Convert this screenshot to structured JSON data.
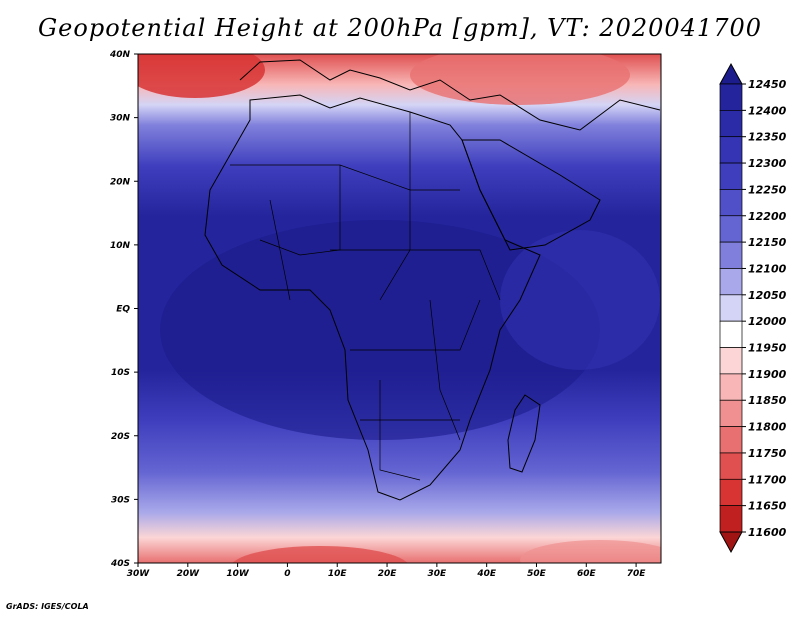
{
  "title": "Geopotential Height at 200hPa [gpm], VT: 2020041700",
  "credit": "GrADS: IGES/COLA",
  "map": {
    "lat_labels": [
      "40N",
      "30N",
      "20N",
      "10N",
      "EQ",
      "10S",
      "20S",
      "30S",
      "40S"
    ],
    "lon_labels": [
      "30W",
      "20W",
      "10W",
      "0",
      "10E",
      "20E",
      "30E",
      "40E",
      "50E",
      "60E",
      "70E"
    ]
  },
  "colorbar": {
    "levels": [
      "12450",
      "12400",
      "12350",
      "12300",
      "12250",
      "12200",
      "12150",
      "12100",
      "12050",
      "12000",
      "11950",
      "11900",
      "11850",
      "11800",
      "11750",
      "11700",
      "11650",
      "11600"
    ],
    "colors": [
      "#1c1c8c",
      "#24249c",
      "#2b2ba8",
      "#3434b4",
      "#3f3fbe",
      "#5050c8",
      "#6464d2",
      "#8080dc",
      "#a8a8ea",
      "#d4d4f6",
      "#ffffff",
      "#fcd6d6",
      "#f8b6b6",
      "#f09090",
      "#e87070",
      "#e05050",
      "#d83434",
      "#c02020",
      "#a01414"
    ]
  }
}
